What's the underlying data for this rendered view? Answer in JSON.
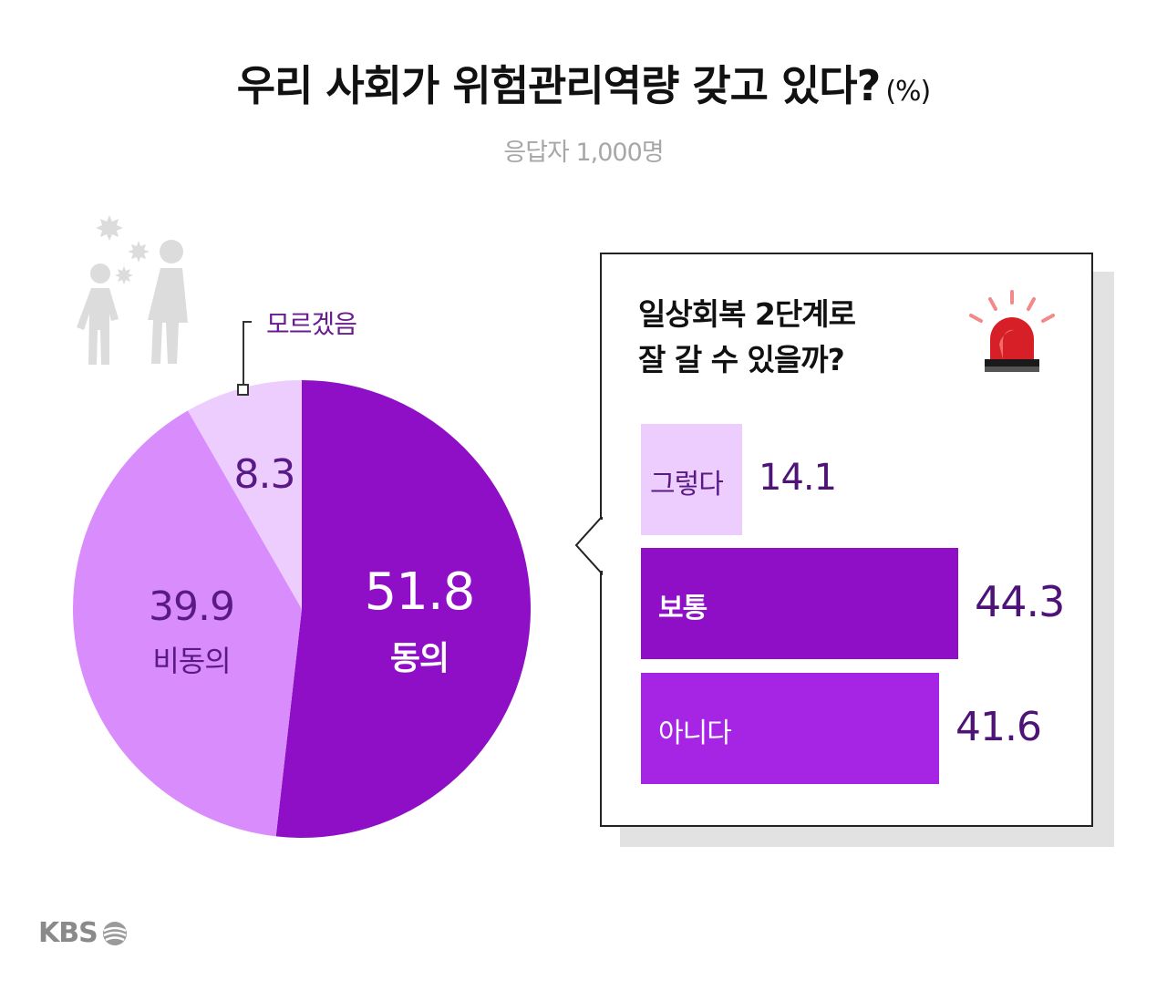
{
  "title": "우리 사회가 위험관리역량 갖고 있다?",
  "title_unit": "(%)",
  "subtitle": "응답자 1,000명",
  "colors": {
    "agree": "#8e0fc6",
    "disagree": "#d98cfb",
    "unknown": "#eccdfd",
    "bar_normal": "#8e0fc6",
    "bar_no": "#a624e3",
    "bar_yes": "#eccdfd"
  },
  "chart_data": [
    {
      "type": "pie",
      "slices": [
        {
          "label": "동의",
          "value": 51.8
        },
        {
          "label": "비동의",
          "value": 39.9
        },
        {
          "label": "모르겠음",
          "value": 8.3
        }
      ],
      "value_labels": [
        "51.8",
        "39.9",
        "8.3"
      ]
    },
    {
      "type": "bar",
      "title": "일상회복 2단계로 잘 갈 수 있을까?",
      "categories": [
        "그렇다",
        "보통",
        "아니다"
      ],
      "values": [
        14.1,
        44.3,
        41.6
      ],
      "value_labels": [
        "14.1",
        "44.3",
        "41.6"
      ]
    }
  ],
  "panel_title_line1": "일상회복 2단계로",
  "panel_title_line2": "잘 갈 수 있을까?",
  "icons": {
    "people": "walking-people-icon",
    "siren": "siren-icon",
    "logo": "kbs-logo-icon"
  },
  "logo_text": "KBS"
}
